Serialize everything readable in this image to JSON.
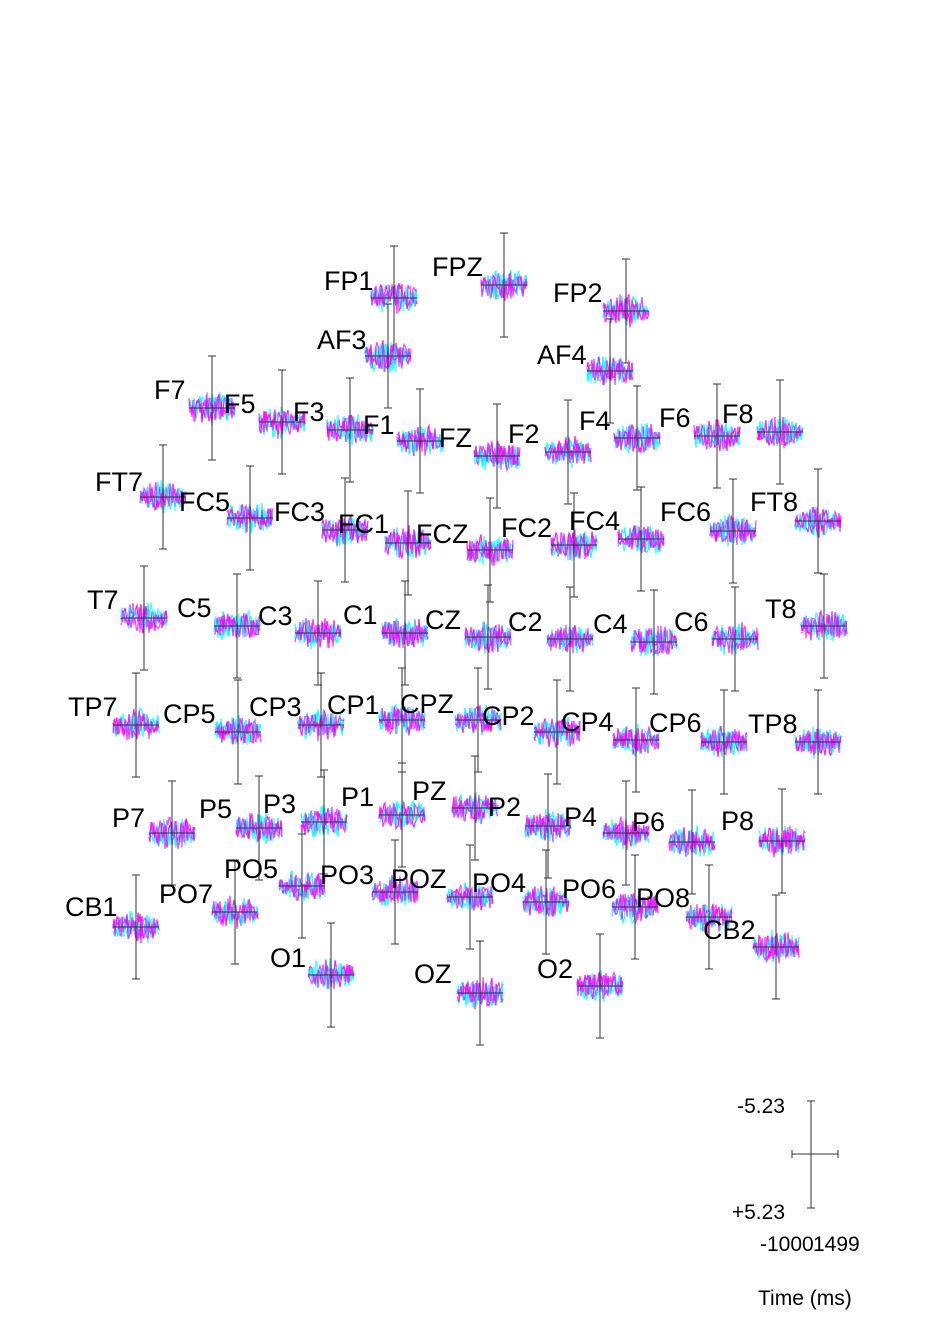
{
  "chart_data": {
    "type": "line",
    "title": "",
    "xlabel": "Time (ms)",
    "ylabel": "",
    "x_range": [
      -1000,
      1499
    ],
    "y_range_display": [
      "-5.23",
      "+5.23"
    ],
    "y_axis_inverted": true,
    "scale_labels": {
      "y_top": "-5.23",
      "y_bottom": "+5.23",
      "x_left": "-1000",
      "x_right": "1499"
    },
    "series_colors": [
      "#ff00ff",
      "#00ffff",
      "#00c000",
      "#808080"
    ],
    "channels": [
      {
        "label": "FP1"
      },
      {
        "label": "FPZ"
      },
      {
        "label": "FP2"
      },
      {
        "label": "AF3"
      },
      {
        "label": "AF4"
      },
      {
        "label": "F7"
      },
      {
        "label": "F5"
      },
      {
        "label": "F3"
      },
      {
        "label": "F1"
      },
      {
        "label": "FZ"
      },
      {
        "label": "F2"
      },
      {
        "label": "F4"
      },
      {
        "label": "F6"
      },
      {
        "label": "F8"
      },
      {
        "label": "FT7"
      },
      {
        "label": "FC5"
      },
      {
        "label": "FC3"
      },
      {
        "label": "FC1"
      },
      {
        "label": "FCZ"
      },
      {
        "label": "FC2"
      },
      {
        "label": "FC4"
      },
      {
        "label": "FC6"
      },
      {
        "label": "FT8"
      },
      {
        "label": "T7"
      },
      {
        "label": "C5"
      },
      {
        "label": "C3"
      },
      {
        "label": "C1"
      },
      {
        "label": "CZ"
      },
      {
        "label": "C2"
      },
      {
        "label": "C4"
      },
      {
        "label": "C6"
      },
      {
        "label": "T8"
      },
      {
        "label": "TP7"
      },
      {
        "label": "CP5"
      },
      {
        "label": "CP3"
      },
      {
        "label": "CP1"
      },
      {
        "label": "CPZ"
      },
      {
        "label": "CP2"
      },
      {
        "label": "CP4"
      },
      {
        "label": "CP6"
      },
      {
        "label": "TP8"
      },
      {
        "label": "P7"
      },
      {
        "label": "P5"
      },
      {
        "label": "P3"
      },
      {
        "label": "P1"
      },
      {
        "label": "PZ"
      },
      {
        "label": "P2"
      },
      {
        "label": "P4"
      },
      {
        "label": "P6"
      },
      {
        "label": "P8"
      },
      {
        "label": "CB1"
      },
      {
        "label": "PO7"
      },
      {
        "label": "PO5"
      },
      {
        "label": "PO3"
      },
      {
        "label": "POZ"
      },
      {
        "label": "PO4"
      },
      {
        "label": "PO6"
      },
      {
        "label": "PO8"
      },
      {
        "label": "CB2"
      },
      {
        "label": "O1"
      },
      {
        "label": "OZ"
      },
      {
        "label": "O2"
      }
    ]
  }
}
